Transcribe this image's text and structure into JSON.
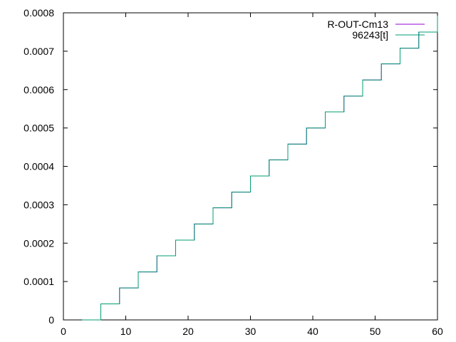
{
  "chart_data": {
    "type": "line",
    "title": "",
    "xlabel": "",
    "ylabel": "",
    "xlim": [
      0,
      60
    ],
    "ylim": [
      0,
      0.0008
    ],
    "x_ticks": [
      0,
      10,
      20,
      30,
      40,
      50,
      60
    ],
    "x_tick_labels": [
      "0",
      "10",
      "20",
      "30",
      "40",
      "50",
      "60"
    ],
    "y_ticks": [
      0,
      0.0001,
      0.0002,
      0.0003,
      0.0004,
      0.0005,
      0.0006,
      0.0007,
      0.0008
    ],
    "y_tick_labels": [
      "0",
      "0.0001",
      "0.0002",
      "0.0003",
      "0.0004",
      "0.0005",
      "0.0006",
      "0.0007",
      "0.0008"
    ],
    "grid": false,
    "legend_position": "top-right",
    "step_style": "staircase",
    "series": [
      {
        "name": "R-OUT-Cm13",
        "color": "#9400d3",
        "x": [
          3,
          6,
          9,
          12,
          15,
          18,
          21,
          24,
          27,
          30,
          33,
          36,
          39,
          42,
          45,
          48,
          51,
          54,
          57,
          60
        ],
        "y": [
          0,
          4.17e-05,
          8.33e-05,
          0.000125,
          0.000167,
          0.000208,
          0.00025,
          0.000292,
          0.000333,
          0.000375,
          0.000417,
          0.000458,
          0.0005,
          0.000542,
          0.000583,
          0.000625,
          0.000667,
          0.000708,
          0.00075,
          0.000792
        ]
      },
      {
        "name": "96243[t]",
        "color": "#009e73",
        "x": [
          3,
          6,
          9,
          12,
          15,
          18,
          21,
          24,
          27,
          30,
          33,
          36,
          39,
          42,
          45,
          48,
          51,
          54,
          57,
          60
        ],
        "y": [
          0,
          4.17e-05,
          8.33e-05,
          0.000125,
          0.000167,
          0.000208,
          0.00025,
          0.000292,
          0.000333,
          0.000375,
          0.000417,
          0.000458,
          0.0005,
          0.000542,
          0.000583,
          0.000625,
          0.000667,
          0.000708,
          0.00075,
          0.000792
        ]
      }
    ]
  }
}
